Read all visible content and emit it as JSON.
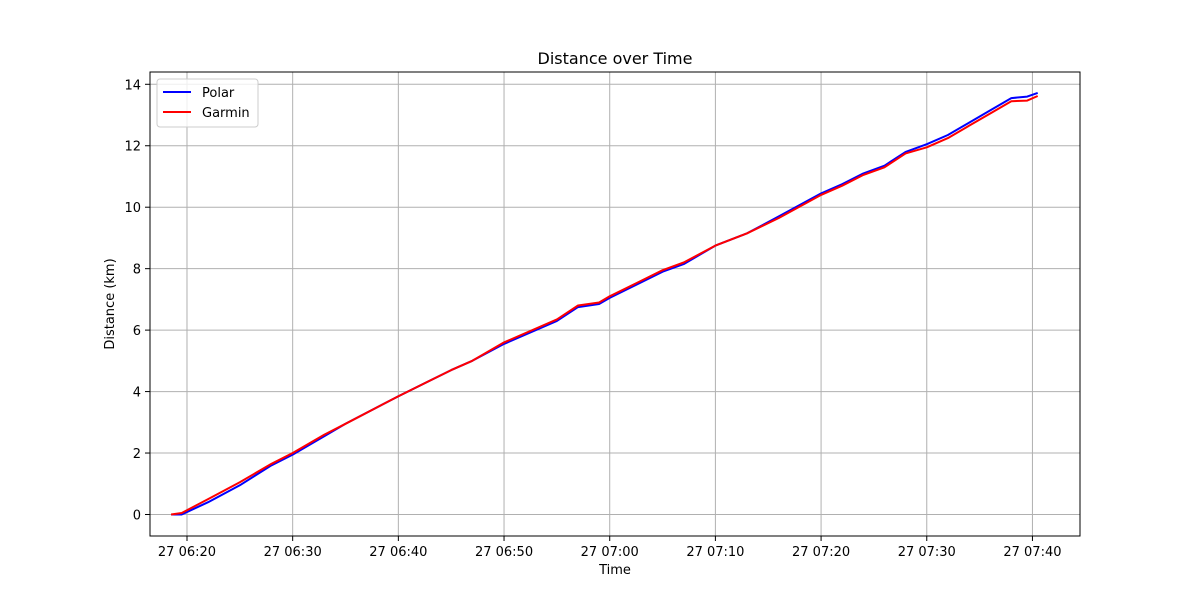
{
  "chart_data": {
    "type": "line",
    "title": "Distance over Time",
    "xlabel": "Time",
    "ylabel": "Distance (km)",
    "x_ticks": [
      "27 06:20",
      "27 06:30",
      "27 06:40",
      "27 06:50",
      "27 07:00",
      "27 07:10",
      "27 07:20",
      "27 07:30",
      "27 07:40"
    ],
    "xlim": [
      "06:16:30",
      "07:44:30"
    ],
    "y_ticks": [
      "0",
      "2",
      "4",
      "6",
      "8",
      "10",
      "12",
      "14"
    ],
    "ylim": [
      -0.7,
      14.4
    ],
    "grid": true,
    "legend_position": "upper-left",
    "series": [
      {
        "name": "Polar",
        "color": "#0000ff",
        "points": [
          [
            "06:18:30",
            0.0
          ],
          [
            "06:19:30",
            0.0
          ],
          [
            "06:22:00",
            0.4
          ],
          [
            "06:25:00",
            0.95
          ],
          [
            "06:28:00",
            1.6
          ],
          [
            "06:30:00",
            1.95
          ],
          [
            "06:33:00",
            2.55
          ],
          [
            "06:35:00",
            2.95
          ],
          [
            "06:40:00",
            3.85
          ],
          [
            "06:45:00",
            4.7
          ],
          [
            "06:47:00",
            5.0
          ],
          [
            "06:50:00",
            5.55
          ],
          [
            "06:55:00",
            6.3
          ],
          [
            "06:57:00",
            6.75
          ],
          [
            "06:59:00",
            6.85
          ],
          [
            "07:00:00",
            7.05
          ],
          [
            "07:05:00",
            7.9
          ],
          [
            "07:07:00",
            8.15
          ],
          [
            "07:10:00",
            8.75
          ],
          [
            "07:13:00",
            9.15
          ],
          [
            "07:16:00",
            9.7
          ],
          [
            "07:20:00",
            10.45
          ],
          [
            "07:22:00",
            10.75
          ],
          [
            "07:24:00",
            11.1
          ],
          [
            "07:26:00",
            11.35
          ],
          [
            "07:28:00",
            11.8
          ],
          [
            "07:30:00",
            12.05
          ],
          [
            "07:32:00",
            12.35
          ],
          [
            "07:34:00",
            12.75
          ],
          [
            "07:36:00",
            13.15
          ],
          [
            "07:38:00",
            13.55
          ],
          [
            "07:39:30",
            13.6
          ],
          [
            "07:40:30",
            13.72
          ]
        ]
      },
      {
        "name": "Garmin",
        "color": "#ff0000",
        "points": [
          [
            "06:18:30",
            0.0
          ],
          [
            "06:19:30",
            0.05
          ],
          [
            "06:22:00",
            0.5
          ],
          [
            "06:25:00",
            1.05
          ],
          [
            "06:28:00",
            1.65
          ],
          [
            "06:30:00",
            2.0
          ],
          [
            "06:33:00",
            2.6
          ],
          [
            "06:35:00",
            2.95
          ],
          [
            "06:40:00",
            3.85
          ],
          [
            "06:45:00",
            4.7
          ],
          [
            "06:47:00",
            5.0
          ],
          [
            "06:50:00",
            5.6
          ],
          [
            "06:55:00",
            6.35
          ],
          [
            "06:57:00",
            6.8
          ],
          [
            "06:59:00",
            6.9
          ],
          [
            "07:00:00",
            7.1
          ],
          [
            "07:05:00",
            7.95
          ],
          [
            "07:07:00",
            8.2
          ],
          [
            "07:10:00",
            8.75
          ],
          [
            "07:13:00",
            9.15
          ],
          [
            "07:16:00",
            9.65
          ],
          [
            "07:20:00",
            10.4
          ],
          [
            "07:22:00",
            10.7
          ],
          [
            "07:24:00",
            11.05
          ],
          [
            "07:26:00",
            11.3
          ],
          [
            "07:28:00",
            11.75
          ],
          [
            "07:30:00",
            11.95
          ],
          [
            "07:32:00",
            12.25
          ],
          [
            "07:34:00",
            12.65
          ],
          [
            "07:36:00",
            13.05
          ],
          [
            "07:38:00",
            13.45
          ],
          [
            "07:39:30",
            13.47
          ],
          [
            "07:40:30",
            13.62
          ]
        ]
      }
    ]
  }
}
